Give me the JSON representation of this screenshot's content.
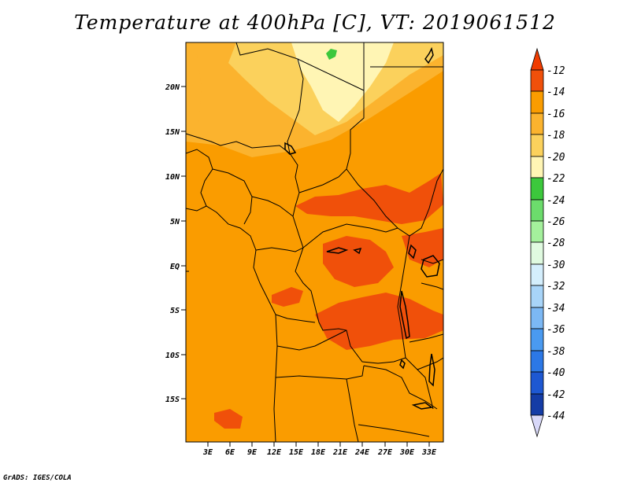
{
  "title": "Temperature at 400hPa [C], VT: 2019061512",
  "credit": "GrADS: IGES/COLA",
  "map": {
    "variable": "Temperature at 400hPa",
    "units": "C",
    "valid_time": "2019061512",
    "lon_range": [
      0,
      34
    ],
    "lat_range": [
      -20,
      24.5
    ],
    "x_ticks": [
      {
        "value": 3,
        "label": "3E"
      },
      {
        "value": 6,
        "label": "6E"
      },
      {
        "value": 9,
        "label": "9E"
      },
      {
        "value": 12,
        "label": "12E"
      },
      {
        "value": 15,
        "label": "15E"
      },
      {
        "value": 18,
        "label": "18E"
      },
      {
        "value": 21,
        "label": "21E"
      },
      {
        "value": 24,
        "label": "24E"
      },
      {
        "value": 27,
        "label": "27E"
      },
      {
        "value": 30,
        "label": "30E"
      },
      {
        "value": 33,
        "label": "33E"
      }
    ],
    "y_ticks": [
      {
        "value": 20,
        "label": "20N"
      },
      {
        "value": 15,
        "label": "15N"
      },
      {
        "value": 10,
        "label": "10N"
      },
      {
        "value": 5,
        "label": "5N"
      },
      {
        "value": 0,
        "label": "EQ"
      },
      {
        "value": -5,
        "label": "5S"
      },
      {
        "value": -10,
        "label": "10S"
      },
      {
        "value": -15,
        "label": "15S"
      }
    ]
  },
  "colorbar": {
    "levels": [
      {
        "label": "-12",
        "color": "#f0500a"
      },
      {
        "label": "-14",
        "color": "#fa9c00"
      },
      {
        "label": "-16",
        "color": "#fbb32e"
      },
      {
        "label": "-18",
        "color": "#fbd15c"
      },
      {
        "label": "-20",
        "color": "#fff5b4"
      },
      {
        "label": "-22",
        "color": "#3cc83c"
      },
      {
        "label": "-24",
        "color": "#6cdc6c"
      },
      {
        "label": "-26",
        "color": "#a4f09c"
      },
      {
        "label": "-28",
        "color": "#e0fae0"
      },
      {
        "label": "-30",
        "color": "#d4eefc"
      },
      {
        "label": "-32",
        "color": "#a8d4f8"
      },
      {
        "label": "-34",
        "color": "#7cb8f4"
      },
      {
        "label": "-36",
        "color": "#4a9af0"
      },
      {
        "label": "-38",
        "color": "#2c78e6"
      },
      {
        "label": "-40",
        "color": "#1e58d2"
      },
      {
        "label": "-42",
        "color": "#143ca6"
      },
      {
        "label": "-44",
        "color": "#0a1a78"
      }
    ],
    "top_arrow_color": "#f03c00",
    "bottom_arrow_color": "#d8d8f8"
  }
}
